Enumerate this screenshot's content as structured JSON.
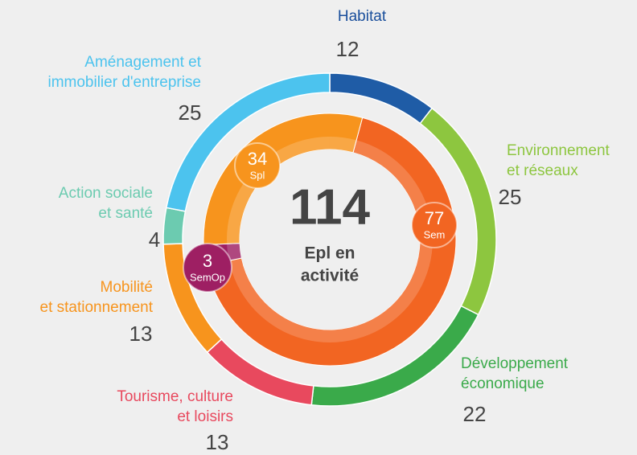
{
  "chart_data": {
    "type": "donut",
    "total": 114,
    "center_label": [
      "Epl en",
      "activité"
    ],
    "rings": [
      {
        "categories": [
          "Habitat",
          "Environnement\net réseaux",
          "Développement\néconomique",
          "Tourisme, culture\net loisirs",
          "Mobilité\net stationnement",
          "Action sociale\net santé",
          "Aménagement et\nimmobilier d'entreprise"
        ],
        "values": [
          12,
          25,
          22,
          13,
          13,
          4,
          25
        ],
        "colors": [
          "#1f5ca6",
          "#8dc63f",
          "#3aaa4a",
          "#e8495e",
          "#f7941d",
          "#6ccbb0",
          "#4cc3ee"
        ]
      },
      {
        "categories": [
          "Sem",
          "SemOp",
          "Spl"
        ],
        "values": [
          77,
          3,
          34
        ],
        "colors": [
          "#f26522",
          "#9e1f63",
          "#f7941d"
        ]
      }
    ]
  }
}
